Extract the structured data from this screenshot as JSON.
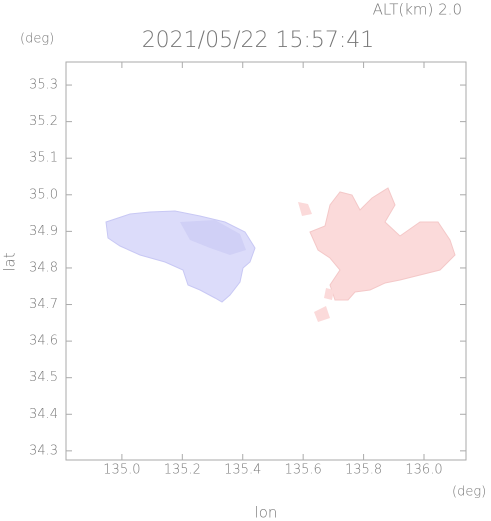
{
  "chart_data": {
    "type": "map",
    "title": "2021/05/22 15:57:41",
    "subtitle": "ALT(km)  2.0",
    "xlabel": "lon",
    "ylabel": "lat",
    "xunit": "(deg)",
    "yunit": "(deg)",
    "xlim": [
      134.815,
      136.139
    ],
    "ylim": [
      34.275,
      35.363
    ],
    "xticks": [
      {
        "value": 135,
        "label": "135.0"
      },
      135.2,
      135.4,
      135.6,
      135.8,
      {
        "value": 136,
        "label": "136.0"
      }
    ],
    "yticks": [
      34.3,
      34.4,
      34.5,
      34.6,
      34.7,
      34.8,
      34.9,
      {
        "value": 35,
        "label": "35.0"
      },
      35.1,
      35.2,
      35.3
    ]
  }
}
